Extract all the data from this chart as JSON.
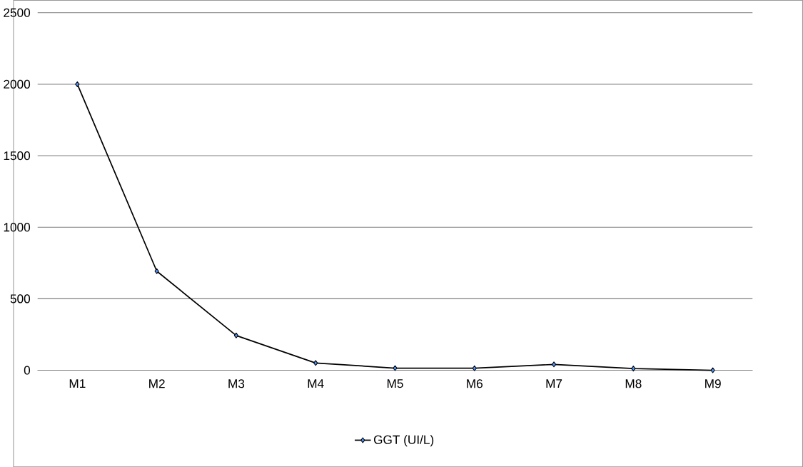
{
  "chart_data": {
    "type": "line",
    "categories": [
      "M1",
      "M2",
      "M3",
      "M4",
      "M5",
      "M6",
      "M7",
      "M8",
      "M9"
    ],
    "series": [
      {
        "name": "GGT (UI/L)",
        "color": "#000000",
        "values": [
          2000,
          693,
          243,
          51,
          15,
          14,
          41,
          12,
          0
        ]
      }
    ],
    "ylim": [
      0,
      2500
    ],
    "yticks": [
      0,
      500,
      1000,
      1500,
      2000,
      2500
    ],
    "grid": "y",
    "legend": "bottom",
    "marker": "diamond",
    "line_style": "solid"
  }
}
